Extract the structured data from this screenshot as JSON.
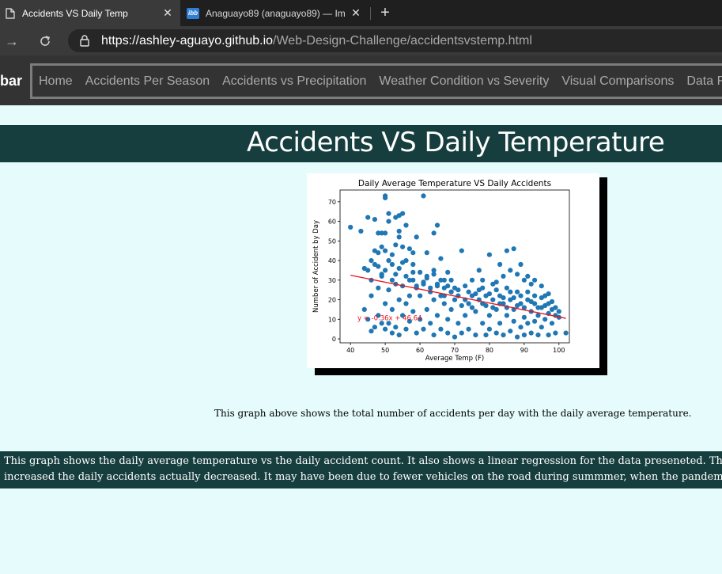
{
  "browser": {
    "tabs": [
      {
        "title": "Accidents VS Daily Temp",
        "icon": "page-icon",
        "active": true
      },
      {
        "title": "Anaguayo89 (anaguayo89) — Im",
        "icon": "ibb-favicon-icon",
        "favicon_text": "ibb",
        "active": false
      }
    ],
    "url_host": "https://ashley-aguayo.github.io",
    "url_path": "/Web-Design-Challenge/accidentsvstemp.html"
  },
  "navbar": {
    "brand": "bar",
    "links": [
      "Home",
      "Accidents Per Season",
      "Accidents vs Precipitation",
      "Weather Condition vs Severity",
      "Visual Comparisons",
      "Data Refe"
    ]
  },
  "page": {
    "title": "Accidents VS Daily Temperature",
    "caption": "This graph above shows the total number of accidents per day with the daily average temperature.",
    "description_lines": [
      "This graph shows the daily average temperature vs the daily accident count. It also shows a linear regression for the data preseneted. This als",
      "increased the daily accidents actually decreased. It may have been due to fewer vehicles on the road during summmer, when the pandemic sta"
    ]
  },
  "chart_data": {
    "type": "scatter",
    "title": "Daily Average Temperature VS Daily Accidents",
    "xlabel": "Average Temp (F)",
    "ylabel": "Number of Accident by Day",
    "xlim": [
      37,
      103
    ],
    "ylim": [
      -2,
      76
    ],
    "xticks": [
      40,
      50,
      60,
      70,
      80,
      90,
      100
    ],
    "yticks": [
      0,
      10,
      20,
      30,
      40,
      50,
      60,
      70
    ],
    "grid": false,
    "point_color": "#1f77b4",
    "line_color": "#e8141c",
    "regression": {
      "x1": 40,
      "y1": 32.5,
      "x2": 102,
      "y2": 10.5
    },
    "annotation": "y = -0.36x + 46.64",
    "points": [
      [
        40,
        57
      ],
      [
        43,
        55
      ],
      [
        44,
        36
      ],
      [
        45,
        35
      ],
      [
        45,
        62
      ],
      [
        46,
        22
      ],
      [
        46,
        30
      ],
      [
        47,
        61
      ],
      [
        47,
        45
      ],
      [
        48,
        54
      ],
      [
        48,
        26
      ],
      [
        48,
        37
      ],
      [
        49,
        54
      ],
      [
        49,
        47
      ],
      [
        49,
        33
      ],
      [
        50,
        73
      ],
      [
        50,
        72
      ],
      [
        50,
        54
      ],
      [
        50,
        45
      ],
      [
        51,
        60
      ],
      [
        51,
        64
      ],
      [
        52,
        43
      ],
      [
        52,
        30
      ],
      [
        53,
        48
      ],
      [
        53,
        62
      ],
      [
        54,
        55
      ],
      [
        54,
        52
      ],
      [
        54,
        63
      ],
      [
        55,
        64
      ],
      [
        55,
        47
      ],
      [
        56,
        58
      ],
      [
        56,
        40
      ],
      [
        57,
        46
      ],
      [
        58,
        34
      ],
      [
        58,
        44
      ],
      [
        59,
        52
      ],
      [
        61,
        73
      ],
      [
        62,
        44
      ],
      [
        64,
        54
      ],
      [
        64,
        35
      ],
      [
        65,
        58
      ],
      [
        66,
        41
      ],
      [
        67,
        30
      ],
      [
        68,
        34
      ],
      [
        69,
        30
      ],
      [
        71,
        22
      ],
      [
        72,
        45
      ],
      [
        73,
        27
      ],
      [
        75,
        30
      ],
      [
        77,
        35
      ],
      [
        78,
        30
      ],
      [
        80,
        43
      ],
      [
        82,
        29
      ],
      [
        83,
        38
      ],
      [
        84,
        32
      ],
      [
        85,
        45
      ],
      [
        86,
        35
      ],
      [
        87,
        46
      ],
      [
        88,
        33
      ],
      [
        89,
        38
      ],
      [
        90,
        30
      ],
      [
        91,
        32
      ],
      [
        92,
        28
      ],
      [
        93,
        30
      ],
      [
        95,
        27
      ],
      [
        96,
        22
      ],
      [
        97,
        23
      ],
      [
        98,
        19
      ],
      [
        100,
        14
      ],
      [
        102,
        3
      ],
      [
        44,
        15
      ],
      [
        45,
        10
      ],
      [
        46,
        4
      ],
      [
        47,
        6
      ],
      [
        48,
        12
      ],
      [
        49,
        8
      ],
      [
        50,
        5
      ],
      [
        50,
        18
      ],
      [
        51,
        25
      ],
      [
        51,
        8
      ],
      [
        52,
        3
      ],
      [
        52,
        15
      ],
      [
        53,
        28
      ],
      [
        53,
        6
      ],
      [
        54,
        20
      ],
      [
        54,
        2
      ],
      [
        55,
        12
      ],
      [
        55,
        27
      ],
      [
        56,
        18
      ],
      [
        56,
        5
      ],
      [
        57,
        22
      ],
      [
        57,
        9
      ],
      [
        58,
        30
      ],
      [
        58,
        14
      ],
      [
        59,
        3
      ],
      [
        59,
        26
      ],
      [
        60,
        10
      ],
      [
        60,
        22
      ],
      [
        61,
        28
      ],
      [
        61,
        5
      ],
      [
        62,
        15
      ],
      [
        62,
        32
      ],
      [
        63,
        24
      ],
      [
        63,
        8
      ],
      [
        64,
        20
      ],
      [
        64,
        2
      ],
      [
        65,
        28
      ],
      [
        65,
        12
      ],
      [
        66,
        5
      ],
      [
        66,
        22
      ],
      [
        67,
        18
      ],
      [
        67,
        26
      ],
      [
        68,
        10
      ],
      [
        68,
        3
      ],
      [
        69,
        15
      ],
      [
        69,
        24
      ],
      [
        70,
        1
      ],
      [
        70,
        20
      ],
      [
        71,
        8
      ],
      [
        72,
        3
      ],
      [
        73,
        12
      ],
      [
        74,
        18
      ],
      [
        74,
        5
      ],
      [
        75,
        22
      ],
      [
        76,
        2
      ],
      [
        76,
        14
      ],
      [
        77,
        25
      ],
      [
        78,
        8
      ],
      [
        78,
        18
      ],
      [
        79,
        2
      ],
      [
        79,
        22
      ],
      [
        80,
        12
      ],
      [
        80,
        5
      ],
      [
        81,
        20
      ],
      [
        81,
        28
      ],
      [
        82,
        3
      ],
      [
        82,
        15
      ],
      [
        83,
        8
      ],
      [
        83,
        22
      ],
      [
        84,
        2
      ],
      [
        84,
        18
      ],
      [
        85,
        12
      ],
      [
        85,
        26
      ],
      [
        86,
        4
      ],
      [
        86,
        20
      ],
      [
        87,
        9
      ],
      [
        87,
        15
      ],
      [
        88,
        1
      ],
      [
        88,
        24
      ],
      [
        89,
        6
      ],
      [
        89,
        18
      ],
      [
        90,
        11
      ],
      [
        90,
        2
      ],
      [
        91,
        20
      ],
      [
        91,
        8
      ],
      [
        92,
        14
      ],
      [
        92,
        3
      ],
      [
        93,
        18
      ],
      [
        93,
        9
      ],
      [
        94,
        12
      ],
      [
        94,
        2
      ],
      [
        95,
        16
      ],
      [
        95,
        6
      ],
      [
        96,
        10
      ],
      [
        97,
        13
      ],
      [
        97,
        2
      ],
      [
        98,
        8
      ],
      [
        99,
        12
      ],
      [
        99,
        3
      ],
      [
        46,
        40
      ],
      [
        47,
        38
      ],
      [
        48,
        44
      ],
      [
        49,
        32
      ],
      [
        50,
        35
      ],
      [
        51,
        40
      ],
      [
        52,
        38
      ],
      [
        53,
        33
      ],
      [
        54,
        36
      ],
      [
        55,
        39
      ],
      [
        56,
        32
      ],
      [
        57,
        30
      ],
      [
        58,
        38
      ],
      [
        59,
        27
      ],
      [
        60,
        34
      ],
      [
        61,
        29
      ],
      [
        62,
        31
      ],
      [
        63,
        26
      ],
      [
        64,
        33
      ],
      [
        65,
        27
      ],
      [
        66,
        30
      ],
      [
        67,
        22
      ],
      [
        68,
        27
      ],
      [
        69,
        24
      ],
      [
        70,
        26
      ],
      [
        71,
        25
      ],
      [
        72,
        17
      ],
      [
        73,
        20
      ],
      [
        74,
        24
      ],
      [
        75,
        16
      ],
      [
        76,
        23
      ],
      [
        77,
        20
      ],
      [
        78,
        26
      ],
      [
        79,
        17
      ],
      [
        80,
        23
      ],
      [
        81,
        16
      ],
      [
        82,
        25
      ],
      [
        83,
        18
      ],
      [
        84,
        21
      ],
      [
        85,
        16
      ],
      [
        86,
        24
      ],
      [
        87,
        21
      ],
      [
        88,
        17
      ],
      [
        89,
        22
      ],
      [
        90,
        16
      ],
      [
        91,
        24
      ],
      [
        92,
        19
      ],
      [
        93,
        22
      ],
      [
        94,
        16
      ],
      [
        95,
        21
      ],
      [
        96,
        17
      ],
      [
        97,
        18
      ],
      [
        98,
        15
      ],
      [
        99,
        16
      ],
      [
        100,
        11
      ]
    ]
  }
}
